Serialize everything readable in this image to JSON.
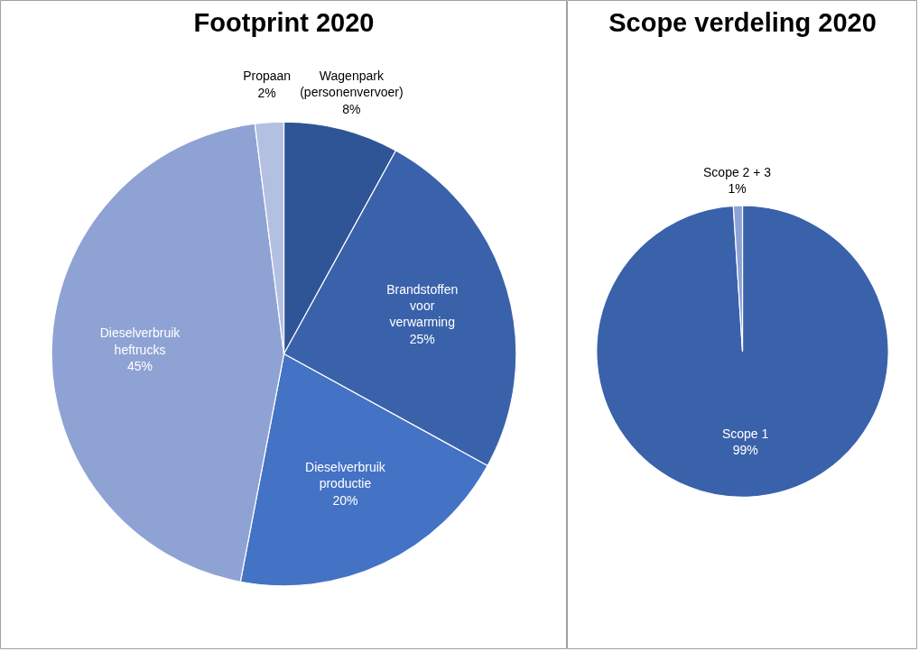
{
  "chart_data": [
    {
      "type": "pie",
      "title": "Footprint 2020",
      "categories": [
        "Wagenpark (personenvervoer)",
        "Brandstoffen voor verwarming",
        "Dieselverbruik productie",
        "Dieselverbruik heftrucks",
        "Propaan"
      ],
      "values": [
        8,
        25,
        20,
        45,
        2
      ],
      "colors": [
        "#2f5597",
        "#3a62ab",
        "#4472c4",
        "#8fa2d4",
        "#b4c0e2"
      ],
      "value_labels": [
        "8%",
        "25%",
        "20%",
        "45%",
        "2%"
      ]
    },
    {
      "type": "pie",
      "title": "Scope verdeling 2020",
      "categories": [
        "Scope 1",
        "Scope 2 + 3"
      ],
      "values": [
        99,
        1
      ],
      "colors": [
        "#3a62ab",
        "#8fa2d4"
      ],
      "value_labels": [
        "99%",
        "1%"
      ]
    }
  ]
}
